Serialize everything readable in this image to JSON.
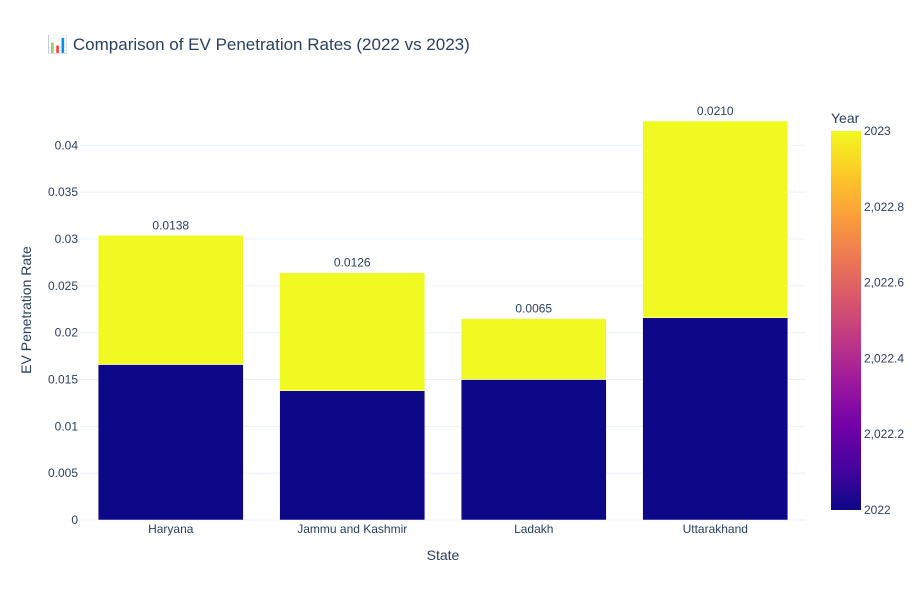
{
  "chart_data": {
    "type": "bar",
    "barmode": "stack",
    "title": "📊 Comparison of EV Penetration Rates (2022 vs 2023)",
    "xlabel": "State",
    "ylabel": "EV Penetration Rate",
    "categories": [
      "Haryana",
      "Jammu and Kashmir",
      "Ladakh",
      "Uttarakhand"
    ],
    "series": [
      {
        "year": 2022,
        "color": "#0d0887",
        "values": [
          0.0166,
          0.0138,
          0.015,
          0.0216
        ]
      },
      {
        "year": 2023,
        "color": "#f0f921",
        "values": [
          0.0138,
          0.0126,
          0.0065,
          0.021
        ]
      }
    ],
    "top_labels": [
      "0.0138",
      "0.0126",
      "0.0065",
      "0.0210"
    ],
    "ylim": [
      0,
      0.0426
    ],
    "y_ticks": [
      0,
      0.005,
      0.01,
      0.015,
      0.02,
      0.025,
      0.03,
      0.035,
      0.04
    ],
    "y_tick_labels": [
      "0",
      "0.005",
      "0.01",
      "0.015",
      "0.02",
      "0.025",
      "0.03",
      "0.035",
      "0.04"
    ],
    "grid": true,
    "colorbar": {
      "title": "Year",
      "range": [
        2022,
        2023
      ],
      "ticks": [
        2022,
        2022.2,
        2022.4,
        2022.6,
        2022.8,
        2023
      ],
      "tick_labels": [
        "2022",
        "2,022.2",
        "2,022.4",
        "2,022.6",
        "2,022.8",
        "2023"
      ],
      "colorscale": [
        "#0d0887",
        "#46039f",
        "#7201a8",
        "#9c179e",
        "#bd3786",
        "#d8576b",
        "#ed7953",
        "#fb9f3a",
        "#fdca26",
        "#f0f921"
      ]
    }
  }
}
